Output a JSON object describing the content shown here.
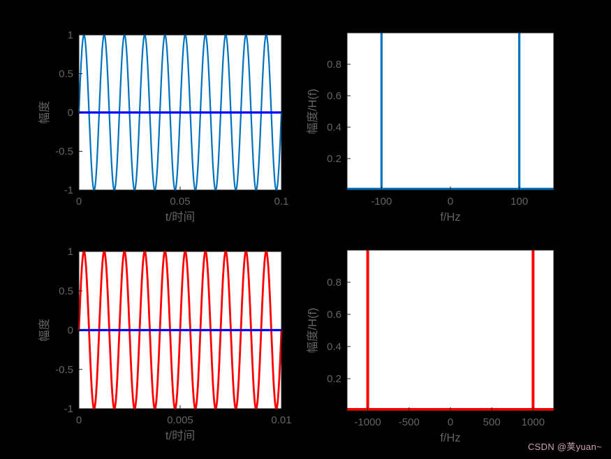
{
  "figure": {
    "background": "#000000",
    "plot_background": "#ffffff",
    "text_color": "#646464",
    "axis_color": "#202020"
  },
  "watermark": {
    "text": "CSDN @荚yuan~",
    "color": "#cfa2ae"
  },
  "chart_data": [
    {
      "name": "signal-100hz-time",
      "type": "line",
      "xlabel": "t/时间",
      "ylabel": "幅度",
      "xlim": [
        0,
        0.1
      ],
      "ylim": [
        -1,
        1
      ],
      "grid": false,
      "xticks": {
        "values": [
          0,
          0.05,
          0.1
        ],
        "labels": [
          "0",
          "0.05",
          "0.1"
        ]
      },
      "yticks": {
        "values": [
          1,
          0.5,
          0,
          -0.5,
          -1
        ],
        "labels": [
          "1",
          "0.5",
          "0",
          "-0.5",
          "-1"
        ]
      },
      "series": [
        {
          "name": "sine-wave-100hz",
          "type": "sine",
          "frequency_hz": 100,
          "amplitude": 1,
          "phase_rad": 0,
          "cycles_shown": 10,
          "color": "#0072bd",
          "line_width": 2.2
        },
        {
          "name": "zero-baseline",
          "type": "constant",
          "value": 0,
          "color": "#0000ff",
          "line_width": 3.2
        }
      ]
    },
    {
      "name": "spectrum-100hz",
      "type": "stem",
      "xlabel": "f/Hz",
      "ylabel": "幅度/H(f)",
      "xlim": [
        -150,
        150
      ],
      "ylim": [
        0,
        1
      ],
      "grid": false,
      "xticks": {
        "values": [
          -100,
          0,
          100
        ],
        "labels": [
          "-100",
          "0",
          "100"
        ]
      },
      "yticks": {
        "values": [
          0.2,
          0.4,
          0.6,
          0.8
        ],
        "labels": [
          "0.2",
          "0.4",
          "0.6",
          "0.8"
        ]
      },
      "series": [
        {
          "name": "spectrum-100hz-peaks",
          "type": "spikes",
          "x": [
            -100,
            100
          ],
          "heights": [
            1,
            1
          ],
          "baseline": 0,
          "color": "#0072bd",
          "line_width": 3.2
        }
      ]
    },
    {
      "name": "signal-1000hz-time",
      "type": "line",
      "xlabel": "t/时间",
      "ylabel": "幅度",
      "xlim": [
        0,
        0.01
      ],
      "ylim": [
        -1,
        1
      ],
      "grid": false,
      "xticks": {
        "values": [
          0,
          0.005,
          0.01
        ],
        "labels": [
          "0",
          "0.005",
          "0.01"
        ]
      },
      "yticks": {
        "values": [
          1,
          0.5,
          0,
          -0.5,
          -1
        ],
        "labels": [
          "1",
          "0.5",
          "0",
          "-0.5",
          "-1"
        ]
      },
      "series": [
        {
          "name": "sine-wave-1000hz",
          "type": "sine",
          "frequency_hz": 1000,
          "amplitude": 1,
          "phase_rad": 0,
          "cycles_shown": 10,
          "color": "#ff0000",
          "line_width": 2.8
        },
        {
          "name": "zero-baseline",
          "type": "constant",
          "value": 0,
          "color": "#0000ff",
          "line_width": 3.2
        }
      ]
    },
    {
      "name": "spectrum-1000hz",
      "type": "stem",
      "xlabel": "f/Hz",
      "ylabel": "幅度/H(f)",
      "xlim": [
        -1250,
        1250
      ],
      "ylim": [
        0,
        1
      ],
      "grid": false,
      "xticks": {
        "values": [
          -1000,
          -500,
          0,
          500,
          1000
        ],
        "labels": [
          "-1000",
          "-500",
          "0",
          "500",
          "1000"
        ]
      },
      "yticks": {
        "values": [
          0.2,
          0.4,
          0.6,
          0.8
        ],
        "labels": [
          "0.2",
          "0.4",
          "0.6",
          "0.8"
        ]
      },
      "series": [
        {
          "name": "spectrum-1000hz-peaks",
          "type": "spikes",
          "x": [
            -1000,
            1000
          ],
          "heights": [
            1,
            1
          ],
          "baseline": 0,
          "color": "#ff0000",
          "line_width": 4
        }
      ]
    }
  ]
}
